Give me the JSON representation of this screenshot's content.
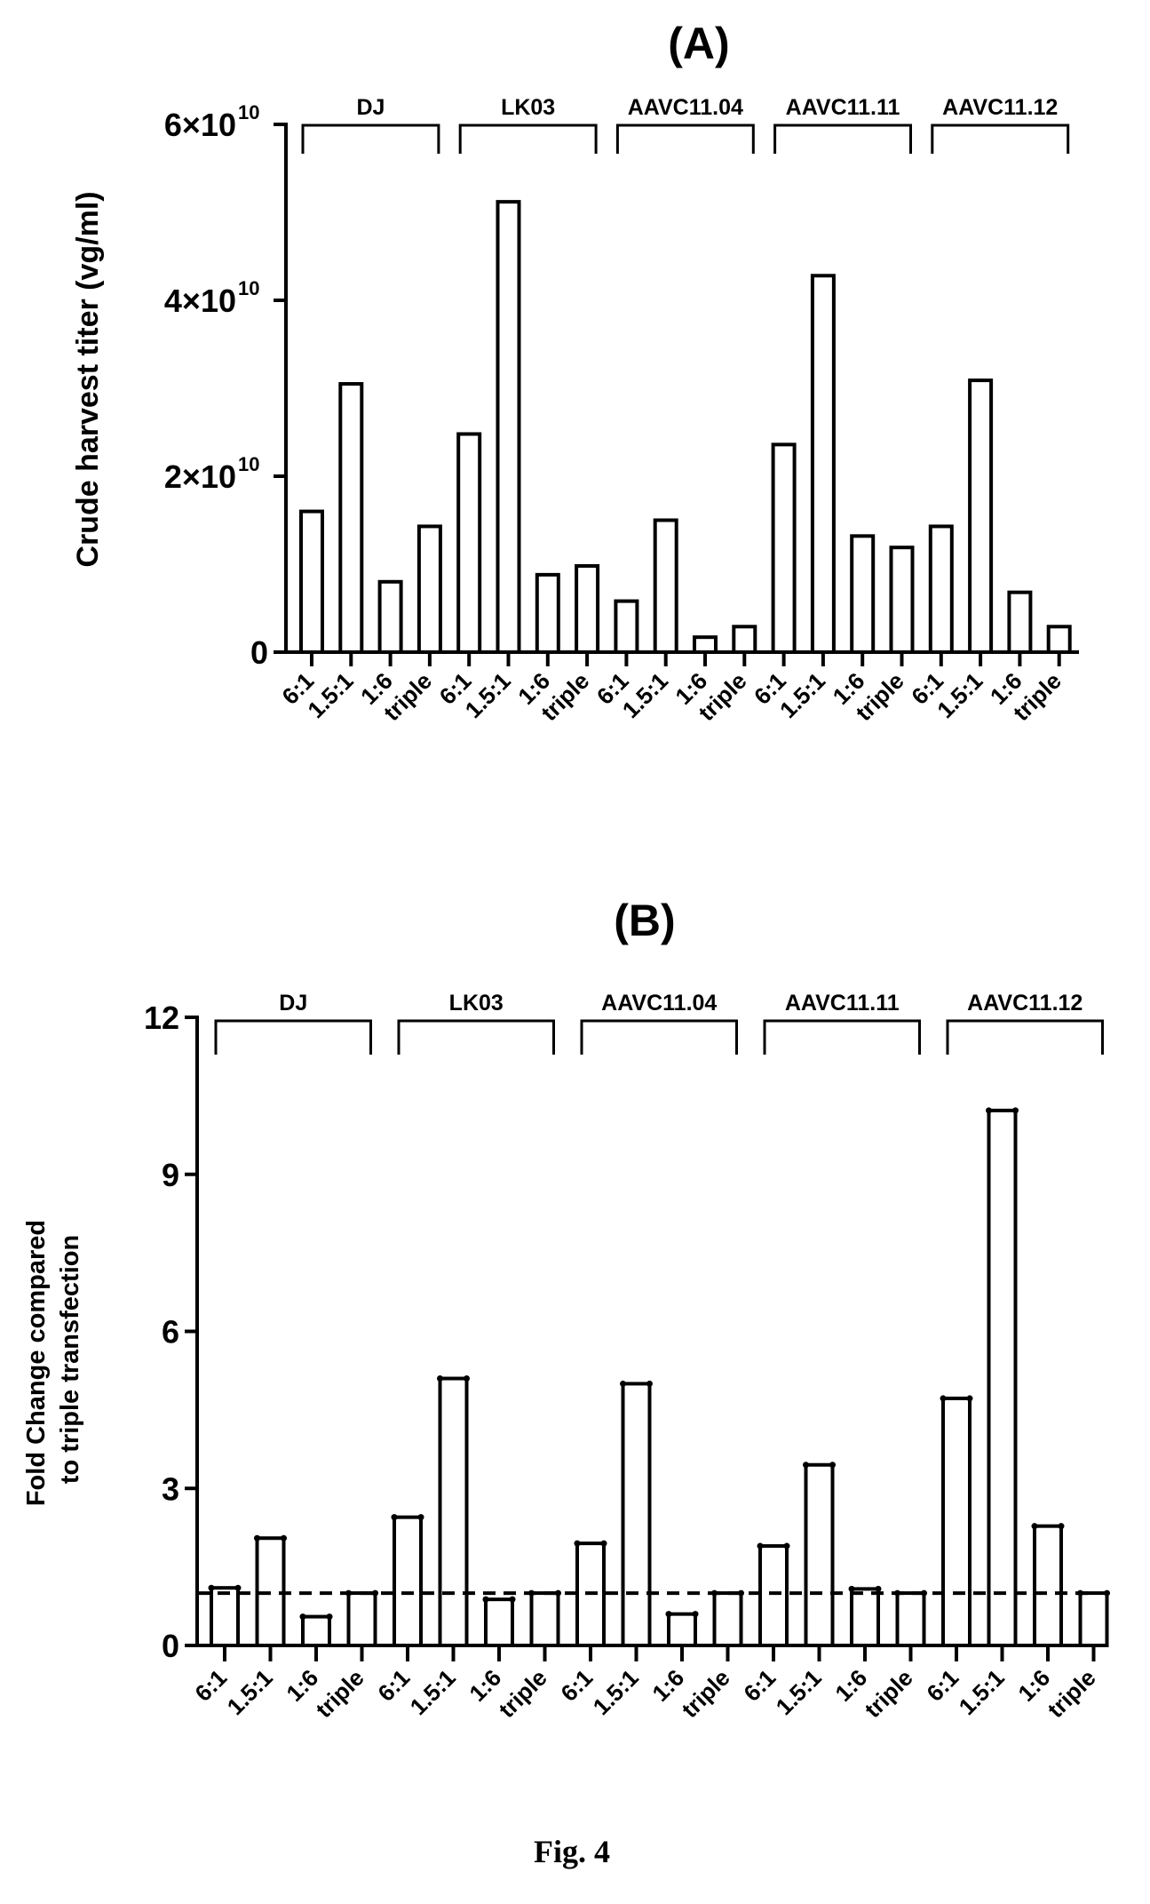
{
  "figure": {
    "caption": "Fig. 4"
  },
  "chart_data": [
    {
      "panel": "(A)",
      "type": "bar",
      "ylabel": "Crude harvest titer (vg/ml)",
      "ylim": [
        0,
        60000000000
      ],
      "yticks": [
        {
          "value": 0,
          "base": "0",
          "exp": ""
        },
        {
          "value": 20000000000,
          "base": "2×10",
          "exp": "10"
        },
        {
          "value": 40000000000,
          "base": "4×10",
          "exp": "10"
        },
        {
          "value": 60000000000,
          "base": "6×10",
          "exp": "10"
        }
      ],
      "groups": [
        {
          "name": "DJ",
          "categories": [
            "6:1",
            "1.5:1",
            "1:6",
            "triple"
          ],
          "values": [
            16000000000,
            30500000000,
            8000000000,
            14300000000
          ]
        },
        {
          "name": "LK03",
          "categories": [
            "6:1",
            "1.5:1",
            "1:6",
            "triple"
          ],
          "values": [
            24800000000,
            51200000000,
            8800000000,
            9800000000
          ]
        },
        {
          "name": "AAVC11.04",
          "categories": [
            "6:1",
            "1.5:1",
            "1:6",
            "triple"
          ],
          "values": [
            5800000000,
            15000000000,
            1700000000,
            2900000000
          ]
        },
        {
          "name": "AAVC11.11",
          "categories": [
            "6:1",
            "1.5:1",
            "1:6",
            "triple"
          ],
          "values": [
            23600000000,
            42800000000,
            13200000000,
            11900000000
          ]
        },
        {
          "name": "AAVC11.12",
          "categories": [
            "6:1",
            "1.5:1",
            "1:6",
            "triple"
          ],
          "values": [
            14300000000,
            30900000000,
            6800000000,
            2900000000
          ]
        }
      ],
      "reference_line": null,
      "grid": false
    },
    {
      "panel": "(B)",
      "type": "bar",
      "ylabel": [
        "Fold Change compared",
        "to triple transfection"
      ],
      "ylim": [
        0,
        12
      ],
      "yticks": [
        {
          "value": 0,
          "base": "0",
          "exp": ""
        },
        {
          "value": 3,
          "base": "3",
          "exp": ""
        },
        {
          "value": 6,
          "base": "6",
          "exp": ""
        },
        {
          "value": 9,
          "base": "9",
          "exp": ""
        },
        {
          "value": 12,
          "base": "12",
          "exp": ""
        }
      ],
      "groups": [
        {
          "name": "DJ",
          "categories": [
            "6:1",
            "1.5:1",
            "1:6",
            "triple"
          ],
          "values": [
            1.1,
            2.05,
            0.55,
            1.0
          ]
        },
        {
          "name": "LK03",
          "categories": [
            "6:1",
            "1.5:1",
            "1:6",
            "triple"
          ],
          "values": [
            2.45,
            5.1,
            0.88,
            1.0
          ]
        },
        {
          "name": "AAVC11.04",
          "categories": [
            "6:1",
            "1.5:1",
            "1:6",
            "triple"
          ],
          "values": [
            1.95,
            5.0,
            0.6,
            1.0
          ]
        },
        {
          "name": "AAVC11.11",
          "categories": [
            "6:1",
            "1.5:1",
            "1:6",
            "triple"
          ],
          "values": [
            1.9,
            3.45,
            1.08,
            1.0
          ]
        },
        {
          "name": "AAVC11.12",
          "categories": [
            "6:1",
            "1.5:1",
            "1:6",
            "triple"
          ],
          "values": [
            4.72,
            10.22,
            2.28,
            1.0
          ]
        }
      ],
      "reference_line": {
        "value": 1,
        "style": "dashed"
      },
      "grid": false
    }
  ]
}
